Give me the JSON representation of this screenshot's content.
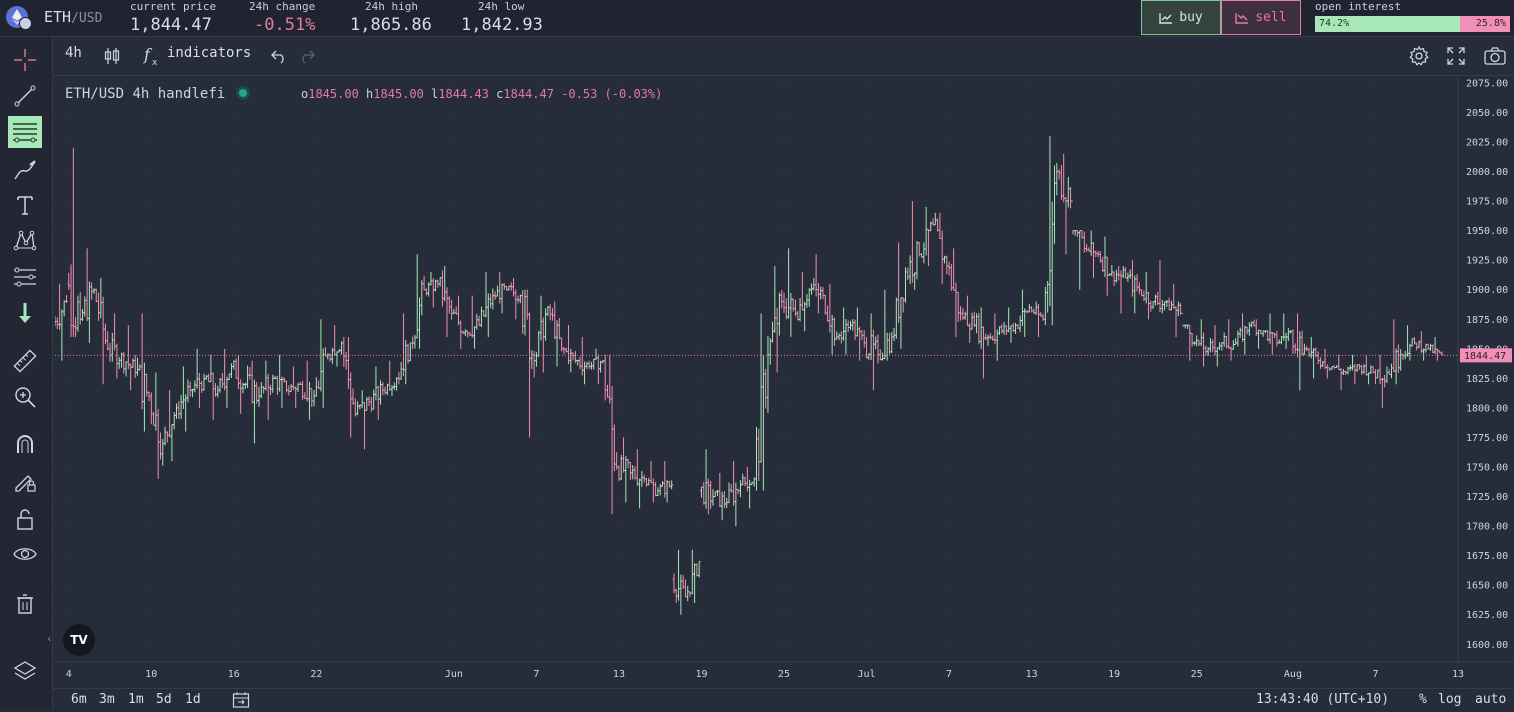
{
  "header": {
    "pair": "ETH",
    "quote": "/USD",
    "stats": [
      {
        "label": "current price",
        "value": "1,844.47",
        "tone": "neutral"
      },
      {
        "label": "24h change",
        "value": "-0.51%",
        "tone": "negative"
      },
      {
        "label": "24h high",
        "value": "1,865.86",
        "tone": "neutral"
      },
      {
        "label": "24h low",
        "value": "1,842.93",
        "tone": "neutral"
      }
    ],
    "buy_label": "buy",
    "sell_label": "sell",
    "open_interest": {
      "label": "open interest",
      "long_label": "74.2%",
      "short_label": "25.8%",
      "long_fraction": 0.742
    }
  },
  "sidebar": {
    "tools": [
      "crosshair-icon",
      "trend-line-icon",
      "horizontal-lines-icon",
      "brush-icon",
      "text-icon",
      "pattern-icon",
      "prediction-icon",
      "arrow-down-icon",
      "ruler-icon",
      "zoom-in-icon",
      "magnet-icon",
      "lock-drawing-icon",
      "unlock-icon",
      "eye-icon",
      "trash-icon",
      "layers-icon"
    ],
    "active_tool": "horizontal-lines-icon"
  },
  "toolbar": {
    "interval": "4h",
    "indicators_label": "indicators"
  },
  "legend": {
    "symbol": "ETH/USD",
    "interval": "4h",
    "source": "handlefi",
    "o_label": "o",
    "o": "1845.00",
    "h_label": "h",
    "h": "1845.00",
    "l_label": "l",
    "l": "1844.43",
    "c_label": "c",
    "c": "1844.47",
    "change": "-0.53",
    "change_pct": "(-0.03%)"
  },
  "tv_logo": "TV",
  "collapse_glyph": "‹",
  "chart_data": {
    "type": "bar",
    "series": [
      {
        "values_kind": "ohlc",
        "start": "2023-05-03"
      }
    ],
    "yticks": [
      1600,
      1625,
      1650,
      1675,
      1700,
      1725,
      1750,
      1775,
      1800,
      1825,
      1850,
      1875,
      1900,
      1925,
      1950,
      1975,
      2000,
      2025,
      2050,
      2075
    ],
    "ylim": [
      1585,
      2080
    ],
    "xticks": [
      {
        "label": "4",
        "date": "2023-05-04"
      },
      {
        "label": "10",
        "date": "2023-05-10"
      },
      {
        "label": "16",
        "date": "2023-05-16"
      },
      {
        "label": "22",
        "date": "2023-05-22"
      },
      {
        "label": "Jun",
        "date": "2023-06-01"
      },
      {
        "label": "7",
        "date": "2023-06-07"
      },
      {
        "label": "13",
        "date": "2023-06-13"
      },
      {
        "label": "19",
        "date": "2023-06-19"
      },
      {
        "label": "25",
        "date": "2023-06-25"
      },
      {
        "label": "Jul",
        "date": "2023-07-01"
      },
      {
        "label": "7",
        "date": "2023-07-07"
      },
      {
        "label": "13",
        "date": "2023-07-13"
      },
      {
        "label": "19",
        "date": "2023-07-19"
      },
      {
        "label": "25",
        "date": "2023-07-25"
      },
      {
        "label": "Aug",
        "date": "2023-08-01"
      },
      {
        "label": "7",
        "date": "2023-08-07"
      },
      {
        "label": "13",
        "date": "2023-08-13"
      }
    ],
    "last_price": 1844.47,
    "last_price_label": "1844.47",
    "daily": [
      [
        "2023-05-03",
        1870,
        1890,
        1840,
        1905
      ],
      [
        "2023-05-04",
        1905,
        1875,
        1860,
        2020
      ],
      [
        "2023-05-05",
        1875,
        1900,
        1855,
        1935
      ],
      [
        "2023-05-06",
        1900,
        1850,
        1820,
        1910
      ],
      [
        "2023-05-07",
        1850,
        1845,
        1825,
        1880
      ],
      [
        "2023-05-08",
        1845,
        1830,
        1815,
        1870
      ],
      [
        "2023-05-09",
        1830,
        1810,
        1780,
        1880
      ],
      [
        "2023-05-10",
        1810,
        1770,
        1740,
        1830
      ],
      [
        "2023-05-11",
        1770,
        1800,
        1755,
        1815
      ],
      [
        "2023-05-12",
        1800,
        1815,
        1780,
        1835
      ],
      [
        "2023-05-13",
        1815,
        1825,
        1800,
        1850
      ],
      [
        "2023-05-14",
        1825,
        1815,
        1790,
        1845
      ],
      [
        "2023-05-15",
        1815,
        1835,
        1800,
        1850
      ],
      [
        "2023-05-16",
        1835,
        1820,
        1795,
        1845
      ],
      [
        "2023-05-17",
        1820,
        1810,
        1770,
        1840
      ],
      [
        "2023-05-18",
        1810,
        1825,
        1790,
        1840
      ],
      [
        "2023-05-19",
        1825,
        1815,
        1800,
        1845
      ],
      [
        "2023-05-20",
        1815,
        1820,
        1800,
        1835
      ],
      [
        "2023-05-21",
        1820,
        1810,
        1790,
        1840
      ],
      [
        "2023-05-22",
        1810,
        1845,
        1800,
        1875
      ],
      [
        "2023-05-23",
        1845,
        1855,
        1835,
        1870
      ],
      [
        "2023-05-24",
        1855,
        1795,
        1775,
        1860
      ],
      [
        "2023-05-25",
        1795,
        1805,
        1765,
        1815
      ],
      [
        "2023-05-26",
        1805,
        1815,
        1790,
        1835
      ],
      [
        "2023-05-27",
        1815,
        1825,
        1810,
        1840
      ],
      [
        "2023-05-28",
        1825,
        1855,
        1820,
        1880
      ],
      [
        "2023-05-29",
        1855,
        1900,
        1850,
        1930
      ],
      [
        "2023-05-30",
        1900,
        1905,
        1885,
        1915
      ],
      [
        "2023-05-31",
        1905,
        1880,
        1860,
        1920
      ],
      [
        "2023-06-01",
        1880,
        1865,
        1850,
        1895
      ],
      [
        "2023-06-02",
        1865,
        1870,
        1850,
        1895
      ],
      [
        "2023-06-03",
        1870,
        1895,
        1860,
        1915
      ],
      [
        "2023-06-04",
        1895,
        1900,
        1880,
        1915
      ],
      [
        "2023-06-05",
        1900,
        1895,
        1875,
        1910
      ],
      [
        "2023-06-06",
        1895,
        1840,
        1775,
        1900
      ],
      [
        "2023-06-07",
        1840,
        1885,
        1830,
        1895
      ],
      [
        "2023-06-08",
        1885,
        1850,
        1835,
        1890
      ],
      [
        "2023-06-09",
        1850,
        1840,
        1830,
        1870
      ],
      [
        "2023-06-10",
        1840,
        1835,
        1820,
        1860
      ],
      [
        "2023-06-11",
        1835,
        1840,
        1820,
        1850
      ],
      [
        "2023-06-12",
        1840,
        1750,
        1710,
        1845
      ],
      [
        "2023-06-13",
        1750,
        1745,
        1720,
        1775
      ],
      [
        "2023-06-14",
        1745,
        1740,
        1715,
        1765
      ],
      [
        "2023-06-15",
        1740,
        1730,
        1720,
        1755
      ],
      [
        "2023-06-16",
        1730,
        1735,
        1720,
        1755
      ],
      [
        "2023-06-17",
        1655,
        1640,
        1625,
        1680
      ],
      [
        "2023-06-18",
        1640,
        1670,
        1635,
        1680
      ],
      [
        "2023-06-19",
        1730,
        1725,
        1710,
        1765
      ],
      [
        "2023-06-20",
        1725,
        1720,
        1705,
        1745
      ],
      [
        "2023-06-21",
        1720,
        1735,
        1700,
        1755
      ],
      [
        "2023-06-22",
        1735,
        1740,
        1715,
        1750
      ],
      [
        "2023-06-23",
        1740,
        1845,
        1730,
        1880
      ],
      [
        "2023-06-24",
        1845,
        1890,
        1830,
        1920
      ],
      [
        "2023-06-25",
        1890,
        1880,
        1860,
        1935
      ],
      [
        "2023-06-26",
        1880,
        1900,
        1865,
        1915
      ],
      [
        "2023-06-27",
        1900,
        1895,
        1880,
        1930
      ],
      [
        "2023-06-28",
        1895,
        1860,
        1845,
        1905
      ],
      [
        "2023-06-29",
        1860,
        1870,
        1845,
        1885
      ],
      [
        "2023-06-30",
        1870,
        1855,
        1840,
        1885
      ],
      [
        "2023-07-01",
        1855,
        1845,
        1815,
        1880
      ],
      [
        "2023-07-02",
        1845,
        1860,
        1840,
        1900
      ],
      [
        "2023-07-03",
        1860,
        1915,
        1850,
        1940
      ],
      [
        "2023-07-04",
        1915,
        1930,
        1900,
        1975
      ],
      [
        "2023-07-05",
        1930,
        1955,
        1920,
        1970
      ],
      [
        "2023-07-06",
        1955,
        1920,
        1905,
        1965
      ],
      [
        "2023-07-07",
        1920,
        1880,
        1860,
        1935
      ],
      [
        "2023-07-08",
        1880,
        1870,
        1855,
        1895
      ],
      [
        "2023-07-09",
        1870,
        1860,
        1825,
        1885
      ],
      [
        "2023-07-10",
        1860,
        1865,
        1840,
        1880
      ],
      [
        "2023-07-11",
        1865,
        1870,
        1855,
        1885
      ],
      [
        "2023-07-12",
        1870,
        1885,
        1860,
        1900
      ],
      [
        "2023-07-13",
        1885,
        1875,
        1860,
        1890
      ],
      [
        "2023-07-14",
        1875,
        2000,
        1870,
        2030
      ],
      [
        "2023-07-15",
        2000,
        1975,
        1930,
        2015
      ],
      [
        "2023-07-16",
        1975,
        1935,
        1900,
        1950
      ],
      [
        "2023-07-17",
        1935,
        1930,
        1910,
        1950
      ],
      [
        "2023-07-18",
        1930,
        1915,
        1895,
        1945
      ],
      [
        "2023-07-19",
        1915,
        1910,
        1880,
        1920
      ],
      [
        "2023-07-20",
        1910,
        1900,
        1880,
        1925
      ],
      [
        "2023-07-21",
        1900,
        1890,
        1875,
        1915
      ],
      [
        "2023-07-22",
        1890,
        1890,
        1880,
        1925
      ],
      [
        "2023-07-23",
        1890,
        1880,
        1860,
        1905
      ],
      [
        "2023-07-24",
        1880,
        1855,
        1840,
        1870
      ],
      [
        "2023-07-25",
        1855,
        1850,
        1835,
        1875
      ],
      [
        "2023-07-26",
        1850,
        1855,
        1835,
        1870
      ],
      [
        "2023-07-27",
        1855,
        1855,
        1840,
        1875
      ],
      [
        "2023-07-28",
        1855,
        1870,
        1845,
        1880
      ],
      [
        "2023-07-29",
        1870,
        1865,
        1850,
        1875
      ],
      [
        "2023-07-30",
        1865,
        1855,
        1845,
        1880
      ],
      [
        "2023-07-31",
        1855,
        1865,
        1850,
        1880
      ],
      [
        "2023-08-01",
        1865,
        1850,
        1815,
        1880
      ],
      [
        "2023-08-02",
        1850,
        1840,
        1825,
        1860
      ],
      [
        "2023-08-03",
        1840,
        1835,
        1825,
        1850
      ],
      [
        "2023-08-04",
        1835,
        1830,
        1815,
        1845
      ],
      [
        "2023-08-05",
        1830,
        1835,
        1820,
        1845
      ],
      [
        "2023-08-06",
        1835,
        1830,
        1820,
        1845
      ],
      [
        "2023-08-07",
        1830,
        1830,
        1800,
        1845
      ],
      [
        "2023-08-08",
        1830,
        1845,
        1820,
        1875
      ],
      [
        "2023-08-09",
        1845,
        1855,
        1840,
        1870
      ],
      [
        "2023-08-10",
        1855,
        1850,
        1840,
        1865
      ],
      [
        "2023-08-11",
        1850,
        1845,
        1840,
        1860
      ]
    ],
    "colors": {
      "up": "#a8e8b8",
      "down": "#f28fb6",
      "grid": "#2f3646",
      "axis_text": "#cdd3df"
    }
  },
  "bottom": {
    "ranges": [
      "6m",
      "3m",
      "1m",
      "5d",
      "1d"
    ],
    "time": "13:43:40 (UTC+10)",
    "percent": "%",
    "log": "log",
    "auto": "auto"
  }
}
